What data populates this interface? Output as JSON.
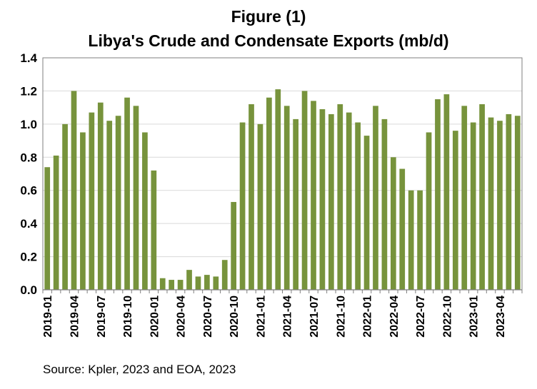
{
  "figure": {
    "title_line1": "Figure (1)",
    "title_line2": "Libya's Crude and Condensate Exports (mb/d)",
    "source": "Source: Kpler, 2023 and EOA, 2023"
  },
  "colors": {
    "bar": "#77933c",
    "grid": "#d9d9d9",
    "axis": "#7f7f7f"
  },
  "chart_data": {
    "type": "bar",
    "title": "Libya's Crude and Condensate Exports (mb/d)",
    "ylabel": "",
    "xlabel": "",
    "ylim": [
      0,
      1.4
    ],
    "yticks": [
      "0.0",
      "0.2",
      "0.4",
      "0.6",
      "0.8",
      "1.0",
      "1.2",
      "1.4"
    ],
    "grid": true,
    "categories": [
      "2019-01",
      "2019-02",
      "2019-03",
      "2019-04",
      "2019-05",
      "2019-06",
      "2019-07",
      "2019-08",
      "2019-09",
      "2019-10",
      "2019-11",
      "2019-12",
      "2020-01",
      "2020-02",
      "2020-03",
      "2020-04",
      "2020-05",
      "2020-06",
      "2020-07",
      "2020-08",
      "2020-09",
      "2020-10",
      "2020-11",
      "2020-12",
      "2021-01",
      "2021-02",
      "2021-03",
      "2021-04",
      "2021-05",
      "2021-06",
      "2021-07",
      "2021-08",
      "2021-09",
      "2021-10",
      "2021-11",
      "2021-12",
      "2022-01",
      "2022-02",
      "2022-03",
      "2022-04",
      "2022-05",
      "2022-06",
      "2022-07",
      "2022-08",
      "2022-09",
      "2022-10",
      "2022-11",
      "2022-12",
      "2023-01",
      "2023-02",
      "2023-03",
      "2023-04",
      "2023-05",
      "2023-06"
    ],
    "xtick_labels": [
      "2019-01",
      "2019-04",
      "2019-07",
      "2019-10",
      "2020-01",
      "2020-04",
      "2020-07",
      "2020-10",
      "2021-01",
      "2021-04",
      "2021-07",
      "2021-10",
      "2022-01",
      "2022-04",
      "2022-07",
      "2022-10",
      "2023-01",
      "2023-04"
    ],
    "values": [
      0.74,
      0.81,
      1.0,
      1.2,
      0.95,
      1.07,
      1.13,
      1.02,
      1.05,
      1.16,
      1.11,
      0.95,
      0.72,
      0.07,
      0.06,
      0.06,
      0.12,
      0.08,
      0.09,
      0.08,
      0.18,
      0.53,
      1.01,
      1.12,
      1.0,
      1.16,
      1.21,
      1.11,
      1.03,
      1.2,
      1.14,
      1.09,
      1.06,
      1.12,
      1.07,
      1.01,
      0.93,
      1.11,
      1.03,
      0.8,
      0.73,
      0.6,
      0.6,
      0.95,
      1.15,
      1.18,
      0.96,
      1.11,
      1.01,
      1.12,
      1.04,
      1.02,
      1.06,
      1.05
    ]
  }
}
